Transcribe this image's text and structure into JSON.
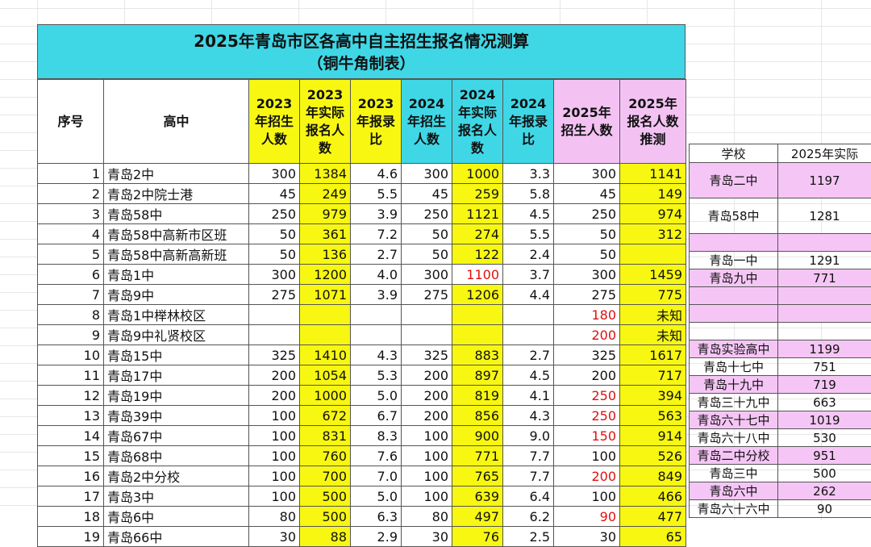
{
  "title": {
    "line1": "2025年青岛市区各高中自主招生报名情况测算",
    "line2": "（铜牛角制表）"
  },
  "main_table": {
    "headers": [
      "序号",
      "高中",
      "2023年招生人数",
      "2023年实际报名人数",
      "2023年报录比",
      "2024年招生人数",
      "2024年实际报名人数",
      "2024年报录比",
      "2025年招生人数",
      "2025年报名人数推测"
    ],
    "rows": [
      [
        "1",
        "青岛2中",
        "300",
        "1384",
        "4.6",
        "300",
        "1000",
        "3.3",
        "300",
        "1141"
      ],
      [
        "2",
        "青岛2中院士港",
        "45",
        "249",
        "5.5",
        "45",
        "259",
        "5.8",
        "45",
        "149"
      ],
      [
        "3",
        "青岛58中",
        "250",
        "979",
        "3.9",
        "250",
        "1121",
        "4.5",
        "250",
        "974"
      ],
      [
        "4",
        "青岛58中高新市区班",
        "50",
        "361",
        "7.2",
        "50",
        "274",
        "5.5",
        "50",
        "312"
      ],
      [
        "5",
        "青岛58中高新高新班",
        "50",
        "136",
        "2.7",
        "50",
        "122",
        "2.4",
        "50",
        ""
      ],
      [
        "6",
        "青岛1中",
        "300",
        "1200",
        "4.0",
        "300",
        "1100",
        "3.7",
        "300",
        "1459"
      ],
      [
        "7",
        "青岛9中",
        "275",
        "1071",
        "3.9",
        "275",
        "1206",
        "4.4",
        "275",
        "775"
      ],
      [
        "8",
        "青岛1中榉林校区",
        "",
        "",
        "",
        "",
        "",
        "",
        "180",
        "未知"
      ],
      [
        "9",
        "青岛9中礼贤校区",
        "",
        "",
        "",
        "",
        "",
        "",
        "200",
        "未知"
      ],
      [
        "10",
        "青岛15中",
        "325",
        "1410",
        "4.3",
        "325",
        "883",
        "2.7",
        "325",
        "1617"
      ],
      [
        "11",
        "青岛17中",
        "200",
        "1054",
        "5.3",
        "200",
        "897",
        "4.5",
        "200",
        "717"
      ],
      [
        "12",
        "青岛19中",
        "200",
        "1000",
        "5.0",
        "200",
        "819",
        "4.1",
        "250",
        "394"
      ],
      [
        "13",
        "青岛39中",
        "100",
        "672",
        "6.7",
        "200",
        "856",
        "4.3",
        "250",
        "563"
      ],
      [
        "14",
        "青岛67中",
        "100",
        "831",
        "8.3",
        "100",
        "900",
        "9.0",
        "150",
        "914"
      ],
      [
        "15",
        "青岛68中",
        "100",
        "760",
        "7.6",
        "100",
        "771",
        "7.7",
        "100",
        "526"
      ],
      [
        "16",
        "青岛2中分校",
        "100",
        "700",
        "7.0",
        "100",
        "765",
        "7.7",
        "200",
        "849"
      ],
      [
        "17",
        "青岛3中",
        "100",
        "500",
        "5.0",
        "100",
        "639",
        "6.4",
        "100",
        "466"
      ],
      [
        "18",
        "青岛6中",
        "80",
        "500",
        "6.3",
        "80",
        "497",
        "6.2",
        "90",
        "477"
      ],
      [
        "19",
        "青岛66中",
        "30",
        "88",
        "2.9",
        "30",
        "76",
        "2.5",
        "30",
        "65"
      ]
    ],
    "red_2024_row": 6,
    "red_2025_enroll_rows": [
      8,
      9,
      12,
      13,
      14,
      16,
      18
    ]
  },
  "side_table": {
    "headers": [
      "学校",
      "2025年实际"
    ],
    "rows": [
      {
        "school": "青岛二中",
        "actual": "1197"
      },
      {
        "school": "青岛58中",
        "actual": "1281"
      },
      {
        "school": "",
        "actual": ""
      },
      {
        "school": "青岛一中",
        "actual": "1291"
      },
      {
        "school": "青岛九中",
        "actual": "771"
      },
      {
        "school": "",
        "actual": ""
      },
      {
        "school": "",
        "actual": ""
      },
      {
        "school": "",
        "actual": ""
      },
      {
        "school": "青岛实验高中",
        "actual": "1199"
      },
      {
        "school": "青岛十七中",
        "actual": "751"
      },
      {
        "school": "青岛十九中",
        "actual": "719"
      },
      {
        "school": "青岛三十九中",
        "actual": "663"
      },
      {
        "school": "青岛六十七中",
        "actual": "1019"
      },
      {
        "school": "青岛六十八中",
        "actual": "530"
      },
      {
        "school": "青岛二中分校",
        "actual": "951"
      },
      {
        "school": "青岛三中",
        "actual": "500"
      },
      {
        "school": "青岛六中",
        "actual": "262"
      },
      {
        "school": "青岛六十六中",
        "actual": "90"
      }
    ]
  },
  "colors": {
    "title_bg": "#3fd7e6",
    "yellow": "#f7f712",
    "pink": "#f3c2f3",
    "red_text": "#e01010"
  }
}
